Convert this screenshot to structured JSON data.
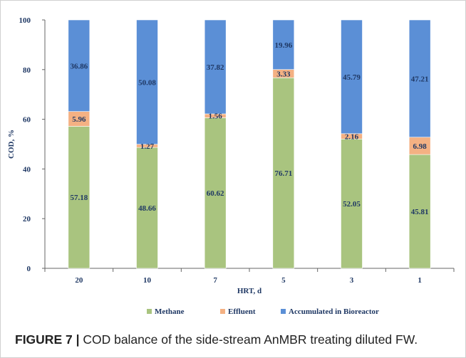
{
  "figure": {
    "label": "FIGURE 7 |",
    "caption": " COD balance of the side-stream AnMBR treating diluted FW."
  },
  "colors": {
    "Methane": "#a9c47f",
    "Effluent": "#f4b183",
    "Accumulated in Bioreactor": "#5b8fd6",
    "axis_text": "#1f3864",
    "label_text": "#1f3864"
  },
  "chart_data": {
    "type": "bar",
    "stacked": true,
    "title": "",
    "xlabel": "HRT, d",
    "ylabel": "COD, %",
    "ylim": [
      0,
      100
    ],
    "yticks": [
      0,
      20,
      40,
      60,
      80,
      100
    ],
    "categories": [
      "20",
      "10",
      "7",
      "5",
      "3",
      "1"
    ],
    "series": [
      {
        "name": "Methane",
        "values": [
          57.18,
          48.66,
          60.62,
          76.71,
          52.05,
          45.81
        ],
        "labels": [
          "57.18",
          "48.66",
          "60.62",
          "76.71",
          "52.05",
          "45.81"
        ]
      },
      {
        "name": "Effluent",
        "values": [
          5.96,
          1.27,
          1.56,
          3.33,
          2.16,
          6.98
        ],
        "labels": [
          "5.96",
          "1.27",
          "1.56",
          "3.33",
          "2.16",
          "6.98"
        ]
      },
      {
        "name": "Accumulated in Bioreactor",
        "values": [
          36.86,
          50.08,
          37.82,
          19.96,
          45.79,
          47.21
        ],
        "labels": [
          "36.86",
          "50.08",
          "37.82",
          "19.96",
          "45.79",
          "47.21"
        ]
      }
    ],
    "legend": "bottom",
    "grid": false
  }
}
